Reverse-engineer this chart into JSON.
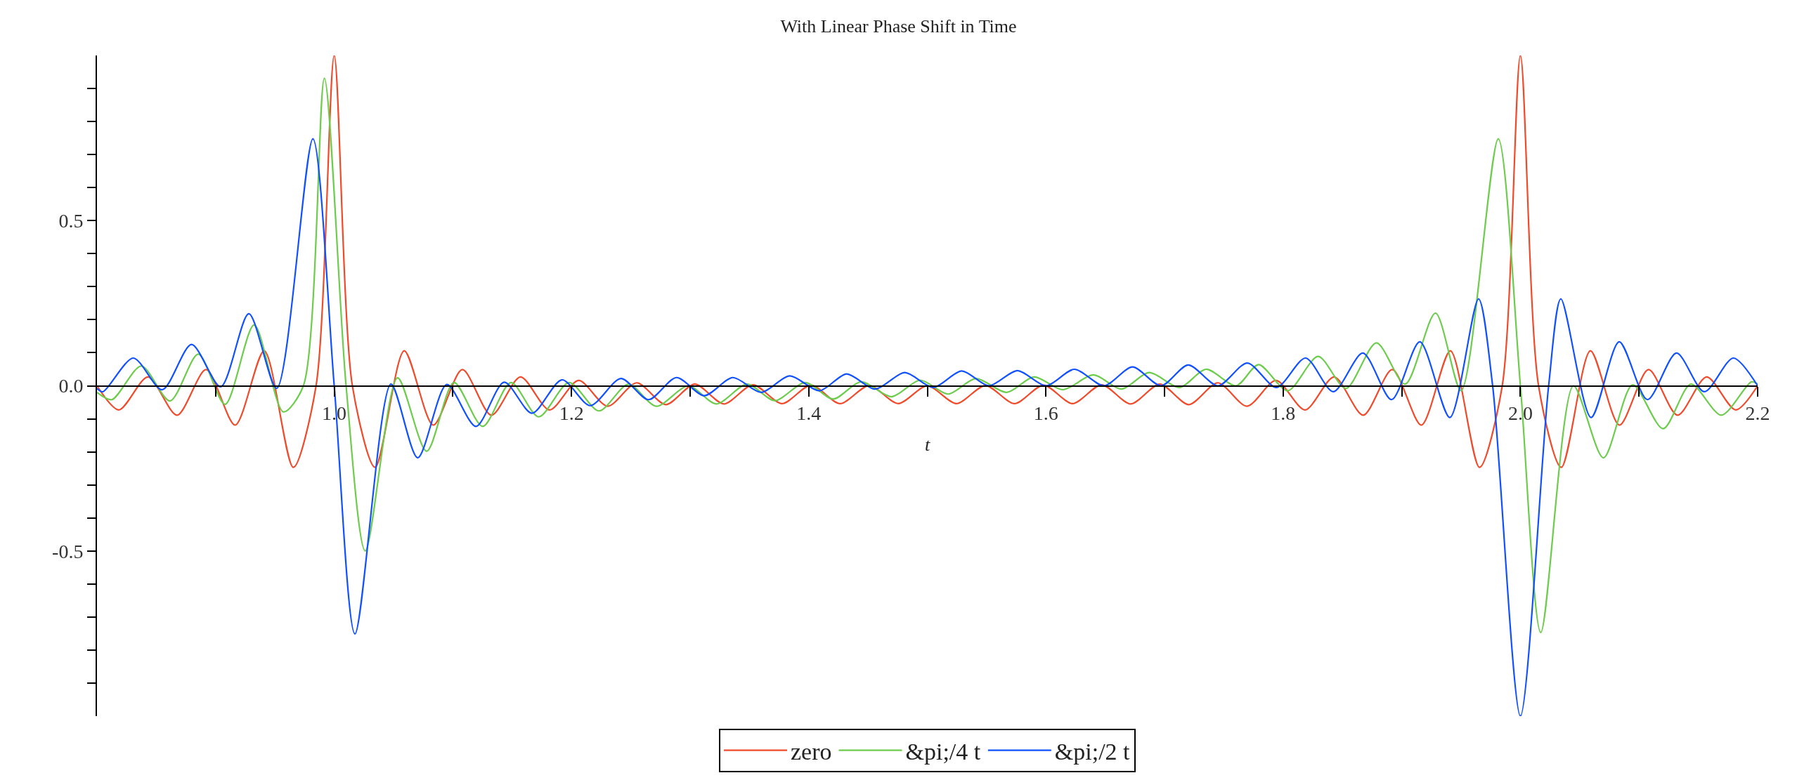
{
  "chart_data": {
    "type": "line",
    "title": "With Linear Phase Shift in Time",
    "xlabel": "t",
    "xlim": [
      0.8,
      2.2
    ],
    "xticks": [
      {
        "value": 0.9,
        "label": null
      },
      {
        "value": 1.0,
        "label": "1.0"
      },
      {
        "value": 1.1,
        "label": null
      },
      {
        "value": 1.2,
        "label": "1.2"
      },
      {
        "value": 1.3,
        "label": null
      },
      {
        "value": 1.4,
        "label": "1.4"
      },
      {
        "value": 1.5,
        "label": null
      },
      {
        "value": 1.6,
        "label": "1.6"
      },
      {
        "value": 1.7,
        "label": null
      },
      {
        "value": 1.8,
        "label": "1.8"
      },
      {
        "value": 1.9,
        "label": null
      },
      {
        "value": 2.0,
        "label": "2.0"
      },
      {
        "value": 2.1,
        "label": null
      },
      {
        "value": 2.2,
        "label": "2.2"
      }
    ],
    "ylim": [
      -1,
      1
    ],
    "yticks": [
      {
        "value": -0.9,
        "label": null
      },
      {
        "value": -0.8,
        "label": null
      },
      {
        "value": -0.7,
        "label": null
      },
      {
        "value": -0.6,
        "label": null
      },
      {
        "value": -0.5,
        "label": "-0.5"
      },
      {
        "value": -0.4,
        "label": null
      },
      {
        "value": -0.3,
        "label": null
      },
      {
        "value": -0.2,
        "label": null
      },
      {
        "value": -0.1,
        "label": null
      },
      {
        "value": 0,
        "label": "0.0"
      },
      {
        "value": 0.1,
        "label": null
      },
      {
        "value": 0.2,
        "label": null
      },
      {
        "value": 0.3,
        "label": null
      },
      {
        "value": 0.4,
        "label": null
      },
      {
        "value": 0.5,
        "label": "0.5"
      },
      {
        "value": 0.6,
        "label": null
      },
      {
        "value": 0.7,
        "label": null
      },
      {
        "value": 0.8,
        "label": null
      },
      {
        "value": 0.9,
        "label": null
      }
    ],
    "grid": false,
    "legend": "bottom",
    "marker": "none",
    "line_style": "solid",
    "series": [
      {
        "name": "zero",
        "color": "#f04a2a",
        "x": [
          0.8,
          0.8185,
          0.843,
          0.8675,
          0.892,
          0.9165,
          0.941,
          0.9655,
          0.9847,
          1.0,
          1.0153,
          1.0345,
          1.059,
          1.0835,
          1.108,
          1.1325,
          1.157,
          1.1815,
          1.206,
          1.2305,
          1.255,
          1.2795,
          1.304,
          1.3285,
          1.353,
          1.3775,
          1.402,
          1.4265,
          1.451,
          1.4755,
          1.5,
          1.5245,
          1.549,
          1.5735,
          1.598,
          1.6225,
          1.647,
          1.6715,
          1.696,
          1.7205,
          1.745,
          1.7695,
          1.794,
          1.8185,
          1.843,
          1.8675,
          1.892,
          1.9165,
          1.941,
          1.9655,
          1.9847,
          2.0,
          2.0153,
          2.0345,
          2.059,
          2.0835,
          2.108,
          2.1325,
          2.157,
          2.1815,
          2.2
        ],
        "values": [
          0.0,
          -0.073,
          0.027,
          -0.089,
          0.049,
          -0.119,
          0.106,
          -0.247,
          0.0,
          1.0,
          0.0,
          -0.247,
          0.106,
          -0.119,
          0.049,
          -0.089,
          0.027,
          -0.073,
          0.016,
          -0.062,
          0.009,
          -0.057,
          0.005,
          -0.055,
          0.003,
          -0.054,
          0.002,
          -0.054,
          0.001,
          -0.054,
          0.0,
          -0.054,
          0.001,
          -0.054,
          0.002,
          -0.054,
          0.003,
          -0.055,
          0.005,
          -0.057,
          0.009,
          -0.062,
          0.016,
          -0.073,
          0.027,
          -0.089,
          0.049,
          -0.119,
          0.106,
          -0.247,
          0.0,
          1.0,
          0.0,
          -0.247,
          0.106,
          -0.119,
          0.049,
          -0.089,
          0.027,
          -0.073,
          0.0
        ]
      },
      {
        "name": "&pi;/4 t",
        "color": "#6ccc4c",
        "x": [
          0.8,
          0.8125,
          0.8374,
          0.8616,
          0.8854,
          0.908,
          0.9325,
          0.9571,
          0.974,
          0.9917,
          1.01,
          1.0262,
          1.0534,
          1.0779,
          1.101,
          1.1252,
          1.149,
          1.1724,
          1.198,
          1.2233,
          1.248,
          1.2715,
          1.2985,
          1.3222,
          1.348,
          1.3715,
          1.397,
          1.4207,
          1.444,
          1.4699,
          1.494,
          1.5175,
          1.541,
          1.5668,
          1.59,
          1.6143,
          1.64,
          1.6636,
          1.687,
          1.7128,
          1.735,
          1.7603,
          1.7793,
          1.8038,
          1.8295,
          1.8529,
          1.8786,
          1.9028,
          1.9284,
          1.95,
          1.9813,
          2.0,
          2.0172,
          2.0447,
          2.07,
          2.0946,
          2.1203,
          2.1437,
          2.1694,
          2.1947,
          2.2
        ],
        "values": [
          -0.02,
          -0.042,
          0.06,
          -0.046,
          0.096,
          -0.056,
          0.184,
          -0.079,
          0.0,
          0.931,
          0.0,
          -0.5,
          0.024,
          -0.198,
          0.01,
          -0.123,
          0.01,
          -0.094,
          0.01,
          -0.076,
          0.005,
          -0.062,
          0.0,
          -0.055,
          0.005,
          -0.045,
          0.01,
          -0.04,
          0.012,
          -0.033,
          0.017,
          -0.025,
          0.022,
          -0.02,
          0.027,
          -0.012,
          0.033,
          -0.01,
          0.04,
          -0.005,
          0.05,
          0.0,
          0.064,
          -0.015,
          0.089,
          -0.008,
          0.13,
          0.005,
          0.22,
          -0.015,
          0.748,
          0.0,
          -0.747,
          0.0,
          -0.218,
          0.003,
          -0.13,
          0.005,
          -0.089,
          0.012,
          0.005
        ]
      },
      {
        "name": "&pi;/2 t",
        "color": "#1050ff",
        "x": [
          0.8,
          0.805,
          0.8306,
          0.855,
          0.8797,
          0.9043,
          0.928,
          0.9515,
          0.982,
          1.0,
          1.0175,
          1.0478,
          1.0704,
          1.0949,
          1.1195,
          1.1433,
          1.1667,
          1.192,
          1.2158,
          1.2417,
          1.265,
          1.2885,
          1.312,
          1.336,
          1.36,
          1.384,
          1.409,
          1.432,
          1.456,
          1.481,
          1.505,
          1.529,
          1.552,
          1.576,
          1.6,
          1.624,
          1.649,
          1.673,
          1.697,
          1.72,
          1.745,
          1.7698,
          1.7944,
          1.8189,
          1.8423,
          1.8672,
          1.8914,
          1.9152,
          1.9405,
          1.9647,
          1.9766,
          2.0,
          2.0238,
          2.0341,
          2.0596,
          2.0833,
          2.1071,
          2.1316,
          2.155,
          2.1795,
          2.2
        ],
        "values": [
          -0.008,
          -0.018,
          0.084,
          -0.012,
          0.125,
          -0.003,
          0.218,
          -0.008,
          0.748,
          0.0,
          -0.751,
          0.005,
          -0.218,
          0.004,
          -0.123,
          0.011,
          -0.083,
          0.018,
          -0.06,
          0.022,
          -0.042,
          0.025,
          -0.03,
          0.025,
          -0.02,
          0.03,
          -0.015,
          0.036,
          -0.01,
          0.04,
          -0.005,
          0.045,
          0.0,
          0.046,
          0.0,
          0.05,
          0.0,
          0.057,
          0.0,
          0.063,
          0.0,
          0.069,
          -0.005,
          0.084,
          -0.018,
          0.099,
          -0.042,
          0.133,
          -0.096,
          0.263,
          0.0,
          -1.0,
          0.0,
          0.263,
          -0.096,
          0.133,
          -0.042,
          0.099,
          -0.018,
          0.084,
          0.0
        ]
      }
    ]
  }
}
